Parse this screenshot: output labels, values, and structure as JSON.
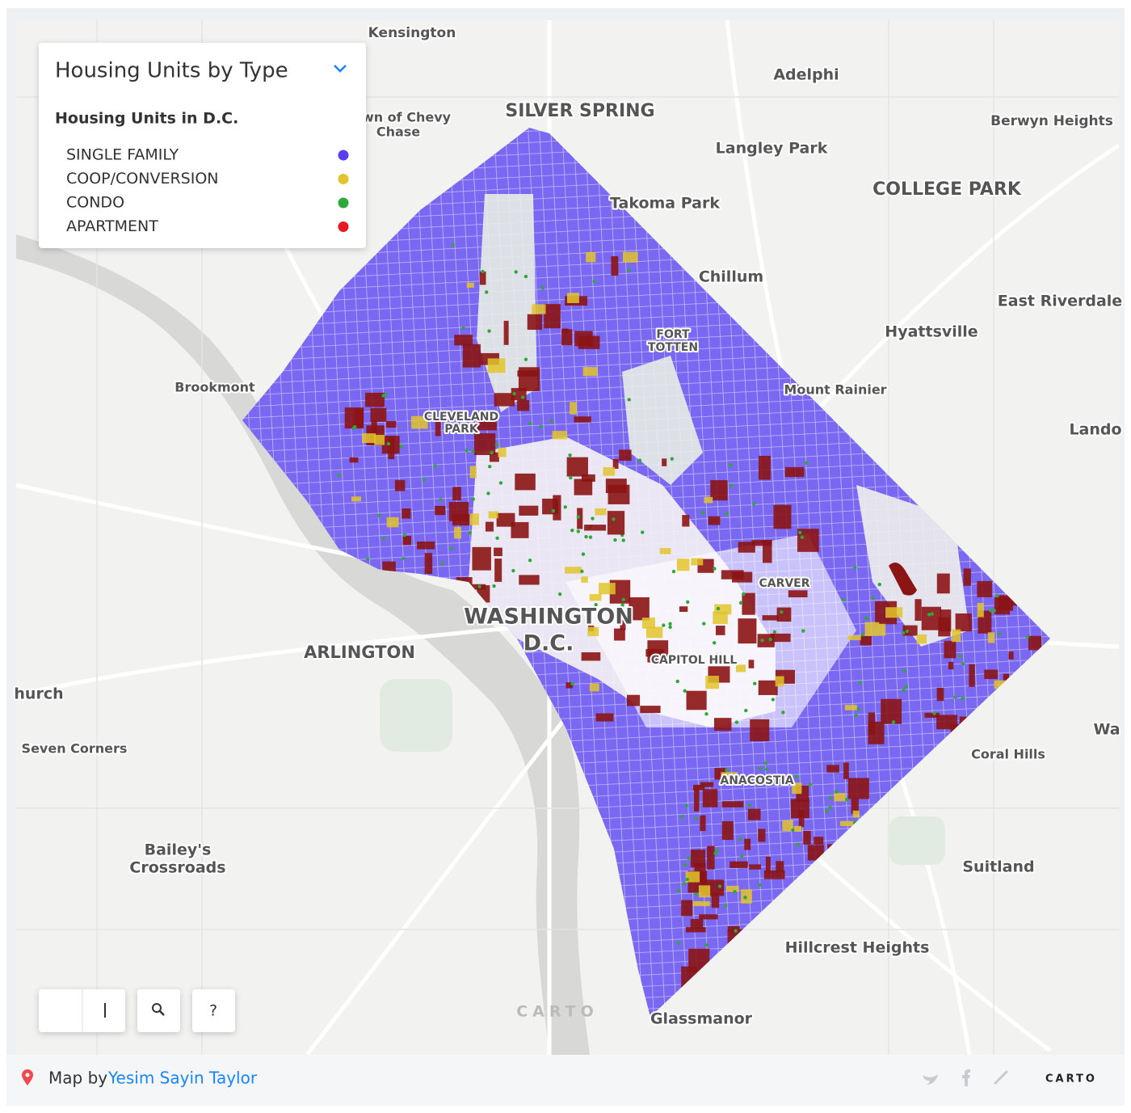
{
  "legend": {
    "title": "Housing Units by Type",
    "subtitle": "Housing Units in D.C.",
    "items": [
      {
        "label": "SINGLE FAMILY",
        "color": "#5a3ff0"
      },
      {
        "label": "COOP/CONVERSION",
        "color": "#e2c42c"
      },
      {
        "label": "CONDO",
        "color": "#2fa83a"
      },
      {
        "label": "APARTMENT",
        "color": "#e8191f"
      }
    ]
  },
  "map_labels": [
    "Kensington",
    "Adelphi",
    "SILVER SPRING",
    "wn of Chevy",
    "Chase",
    "Berwyn Heights",
    "Langley Park",
    "COLLEGE PARK",
    "Takoma Park",
    "Chillum",
    "East Riverdale",
    "Hyattsville",
    "FORT",
    "TOTTEN",
    "Brookmont",
    "Mount Rainier",
    "Lando",
    "CLEVELAND",
    "PARK",
    "CARVER",
    "WASHINGTON",
    "D.C.",
    "ARLINGTON",
    "CAPITOL HILL",
    "hurch",
    "Seven Corners",
    "Coral Hills",
    "Wa",
    "ANACOSTIA",
    "Bailey's",
    "Crossroads",
    "Suitland",
    "Hillcrest Heights",
    "Glassmanor"
  ],
  "controls": {
    "help": "?",
    "watermark": "CARTO"
  },
  "footer": {
    "prefix": "Map by",
    "author": "Yesim Sayin Taylor",
    "logo": "CARTO"
  }
}
